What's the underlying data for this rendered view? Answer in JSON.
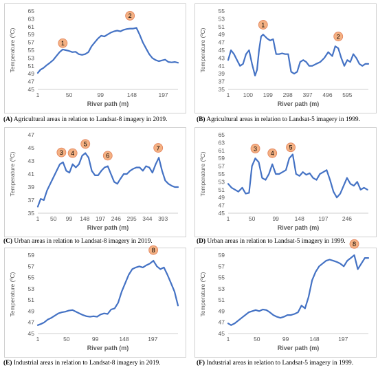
{
  "figure": {
    "panels": [
      {
        "letter": "(A)",
        "text": " Agricultural areas in relation to Landsat-8 imagery in 2019."
      },
      {
        "letter": "(B)",
        "text": " Agricultural areas in relation to Landsat-5 imagery in 1999."
      },
      {
        "letter": "(C)",
        "text": " Urban areas in relation to Landsat-8 imagery in 2019."
      },
      {
        "letter": "(D)",
        "text": " Urban areas in relation to Landsat-5 imagery in 1999."
      },
      {
        "letter": "(E)",
        "text": " Industrial areas in relation to Landsat-8 imagery in 2019."
      },
      {
        "letter": "(F)",
        "text": " Industrial areas in relation to Landsat-5 imagery in 1999."
      }
    ]
  },
  "colors": {
    "line": "#4472C4",
    "marker_fill": "#F4B183",
    "marker_stroke": "#E2805A",
    "axis": "#595959"
  },
  "chart_data": [
    {
      "type": "line",
      "xlabel": "River path (m)",
      "ylabel": "Temperature (ºC)",
      "xlim": [
        1,
        220
      ],
      "ylim": [
        45,
        65
      ],
      "yticks": [
        45,
        47,
        49,
        51,
        53,
        55,
        57,
        59,
        61,
        63,
        65
      ],
      "xticks": [
        1,
        50,
        99,
        148,
        197
      ],
      "x": [
        1,
        5,
        10,
        15,
        20,
        25,
        30,
        35,
        40,
        45,
        50,
        55,
        60,
        65,
        70,
        75,
        80,
        85,
        90,
        95,
        100,
        105,
        110,
        115,
        120,
        125,
        130,
        135,
        140,
        145,
        150,
        155,
        160,
        165,
        170,
        175,
        180,
        185,
        190,
        195,
        200,
        205,
        210,
        215,
        220
      ],
      "y": [
        49.2,
        50.0,
        50.5,
        51.2,
        51.8,
        52.5,
        53.5,
        54.5,
        55.2,
        55.0,
        54.8,
        54.5,
        54.6,
        54.0,
        53.8,
        54.0,
        54.5,
        56.0,
        57.0,
        58.0,
        58.7,
        58.5,
        59.0,
        59.5,
        59.8,
        60.0,
        59.8,
        60.2,
        60.4,
        60.5,
        60.5,
        60.7,
        59.0,
        57.0,
        55.5,
        54.0,
        53.0,
        52.5,
        52.2,
        52.4,
        52.6,
        52.0,
        51.9,
        52.0,
        51.8
      ],
      "annotations": [
        {
          "label": "1",
          "x": 40,
          "y": 56.8
        },
        {
          "label": "2",
          "x": 145,
          "y": 63.8
        }
      ]
    },
    {
      "type": "line",
      "xlabel": "River path (m)",
      "ylabel": "Temperature (ºC)",
      "xlim": [
        1,
        700
      ],
      "ylim": [
        35,
        55
      ],
      "yticks": [
        35,
        37,
        39,
        41,
        43,
        45,
        47,
        49,
        51,
        53,
        55
      ],
      "xticks": [
        1,
        100,
        199,
        298,
        397,
        496,
        595
      ],
      "x": [
        1,
        15,
        30,
        45,
        60,
        75,
        90,
        105,
        120,
        135,
        145,
        155,
        165,
        175,
        185,
        195,
        210,
        225,
        240,
        255,
        270,
        285,
        300,
        315,
        330,
        345,
        360,
        375,
        390,
        405,
        420,
        440,
        460,
        480,
        500,
        520,
        535,
        550,
        565,
        580,
        595,
        610,
        625,
        640,
        655,
        670,
        685,
        700
      ],
      "y": [
        42.5,
        45.0,
        44.0,
        42.5,
        41.0,
        41.5,
        44.0,
        45.0,
        41.5,
        38.5,
        40.0,
        45.0,
        48.5,
        49.0,
        48.5,
        48.0,
        47.5,
        47.8,
        44.0,
        44.0,
        44.2,
        44.0,
        44.0,
        39.5,
        39.0,
        39.5,
        42.0,
        42.5,
        42.0,
        41.0,
        41.0,
        41.5,
        42.0,
        43.0,
        44.5,
        43.5,
        46.0,
        45.5,
        43.0,
        41.0,
        42.5,
        42.0,
        44.0,
        43.0,
        41.5,
        41.0,
        41.5,
        41.5
      ],
      "annotations": [
        {
          "label": "1",
          "x": 175,
          "y": 51.5
        },
        {
          "label": "2",
          "x": 550,
          "y": 48.5
        }
      ]
    },
    {
      "type": "line",
      "xlabel": "River path (m)",
      "ylabel": "Temperature (ºC)",
      "xlim": [
        1,
        440
      ],
      "ylim": [
        35,
        47
      ],
      "yticks": [
        35,
        37,
        39,
        41,
        43,
        45,
        47
      ],
      "xticks": [
        1,
        50,
        99,
        148,
        197,
        246,
        295,
        344,
        393
      ],
      "x": [
        1,
        10,
        20,
        30,
        40,
        50,
        60,
        70,
        80,
        90,
        100,
        110,
        120,
        130,
        140,
        150,
        160,
        170,
        180,
        190,
        200,
        210,
        220,
        230,
        240,
        250,
        260,
        270,
        280,
        290,
        300,
        310,
        320,
        330,
        340,
        350,
        360,
        370,
        380,
        390,
        400,
        410,
        420,
        430,
        440
      ],
      "y": [
        36.0,
        37.2,
        37.0,
        38.5,
        39.5,
        40.5,
        41.5,
        42.5,
        42.8,
        41.5,
        41.2,
        42.5,
        42.0,
        42.5,
        43.8,
        44.2,
        43.5,
        41.5,
        40.8,
        40.8,
        41.5,
        42.0,
        42.2,
        41.0,
        39.8,
        39.5,
        40.3,
        41.0,
        41.0,
        41.5,
        41.8,
        42.0,
        42.0,
        41.5,
        42.2,
        42.0,
        41.2,
        42.5,
        43.5,
        41.5,
        40.0,
        39.5,
        39.2,
        39.0,
        39.0
      ],
      "annotations": [
        {
          "label": "3",
          "x": 75,
          "y": 44.3
        },
        {
          "label": "4",
          "x": 110,
          "y": 44.2
        },
        {
          "label": "5",
          "x": 150,
          "y": 45.6
        },
        {
          "label": "6",
          "x": 220,
          "y": 43.8
        },
        {
          "label": "7",
          "x": 378,
          "y": 45.0
        }
      ]
    },
    {
      "type": "line",
      "xlabel": "River path (m)",
      "ylabel": "Temperature (ºC)",
      "xlim": [
        1,
        290
      ],
      "ylim": [
        45,
        65
      ],
      "yticks": [
        45,
        47,
        49,
        51,
        53,
        55,
        57,
        59,
        61,
        63,
        65
      ],
      "xticks": [
        1,
        50,
        99,
        148,
        197,
        246
      ],
      "x": [
        1,
        8,
        15,
        22,
        30,
        37,
        44,
        50,
        57,
        64,
        71,
        78,
        85,
        92,
        99,
        106,
        113,
        120,
        127,
        134,
        141,
        148,
        155,
        162,
        169,
        176,
        183,
        190,
        197,
        204,
        211,
        218,
        225,
        232,
        239,
        246,
        253,
        260,
        267,
        274,
        281,
        288
      ],
      "y": [
        52.5,
        51.5,
        51.0,
        50.5,
        51.5,
        50.0,
        50.2,
        57.0,
        59.0,
        58.0,
        54.0,
        53.5,
        55.0,
        57.5,
        55.0,
        55.0,
        55.5,
        56.0,
        59.0,
        60.0,
        55.0,
        54.5,
        55.5,
        54.8,
        55.2,
        54.0,
        53.5,
        55.0,
        55.5,
        56.0,
        53.5,
        50.5,
        49.0,
        50.0,
        52.0,
        54.0,
        52.5,
        52.0,
        53.0,
        51.0,
        51.5,
        51.0
      ],
      "annotations": [
        {
          "label": "3",
          "x": 57,
          "y": 61.5
        },
        {
          "label": "4",
          "x": 92,
          "y": 60.3
        },
        {
          "label": "5",
          "x": 130,
          "y": 61.8
        }
      ]
    },
    {
      "type": "line",
      "xlabel": "River path (m)",
      "ylabel": "Temperature (ºC)",
      "xlim": [
        1,
        240
      ],
      "ylim": [
        45,
        59
      ],
      "yticks": [
        45,
        47,
        49,
        51,
        53,
        55,
        57,
        59
      ],
      "xticks": [
        1,
        50,
        99,
        148,
        197
      ],
      "x": [
        1,
        6,
        12,
        18,
        24,
        30,
        36,
        42,
        48,
        54,
        60,
        66,
        72,
        78,
        84,
        90,
        96,
        102,
        108,
        114,
        120,
        126,
        132,
        138,
        144,
        150,
        156,
        162,
        168,
        174,
        180,
        186,
        192,
        198,
        204,
        210,
        216,
        222,
        228,
        234,
        240
      ],
      "y": [
        46.5,
        46.7,
        47.0,
        47.5,
        47.8,
        48.2,
        48.6,
        48.8,
        48.9,
        49.1,
        49.2,
        48.9,
        48.6,
        48.3,
        48.1,
        48.0,
        48.1,
        48.0,
        48.4,
        48.6,
        48.5,
        49.3,
        49.5,
        50.5,
        52.5,
        54.0,
        55.5,
        56.5,
        56.8,
        57.0,
        56.8,
        57.2,
        57.5,
        58.0,
        57.0,
        56.5,
        56.8,
        55.5,
        54.0,
        52.5,
        50.0
      ],
      "annotations": [
        {
          "label": "8",
          "x": 198,
          "y": 59.9
        }
      ]
    },
    {
      "type": "line",
      "xlabel": "River path (m)",
      "ylabel": "Temperature (ºC)",
      "xlim": [
        1,
        240
      ],
      "ylim": [
        45,
        59
      ],
      "yticks": [
        45,
        47,
        49,
        51,
        53,
        55,
        57,
        59
      ],
      "xticks": [
        1,
        50,
        99,
        148,
        197
      ],
      "x": [
        1,
        6,
        12,
        18,
        24,
        30,
        36,
        42,
        48,
        54,
        60,
        66,
        72,
        78,
        84,
        90,
        96,
        102,
        108,
        114,
        120,
        126,
        132,
        138,
        144,
        150,
        156,
        162,
        168,
        174,
        180,
        186,
        192,
        198,
        204,
        210,
        216,
        222,
        228,
        234,
        240
      ],
      "y": [
        46.8,
        46.5,
        46.8,
        47.3,
        47.8,
        48.3,
        48.8,
        49.0,
        49.2,
        49.0,
        49.3,
        49.2,
        48.8,
        48.3,
        48.0,
        47.8,
        48.0,
        48.3,
        48.3,
        48.5,
        48.8,
        50.0,
        49.5,
        51.5,
        54.5,
        56.0,
        57.0,
        57.5,
        58.0,
        58.2,
        58.0,
        57.8,
        57.5,
        57.0,
        58.0,
        58.5,
        59.0,
        56.5,
        57.5,
        58.5,
        58.5
      ],
      "annotations": [
        {
          "label": "8",
          "x": 216,
          "y": 61.0
        }
      ]
    }
  ]
}
